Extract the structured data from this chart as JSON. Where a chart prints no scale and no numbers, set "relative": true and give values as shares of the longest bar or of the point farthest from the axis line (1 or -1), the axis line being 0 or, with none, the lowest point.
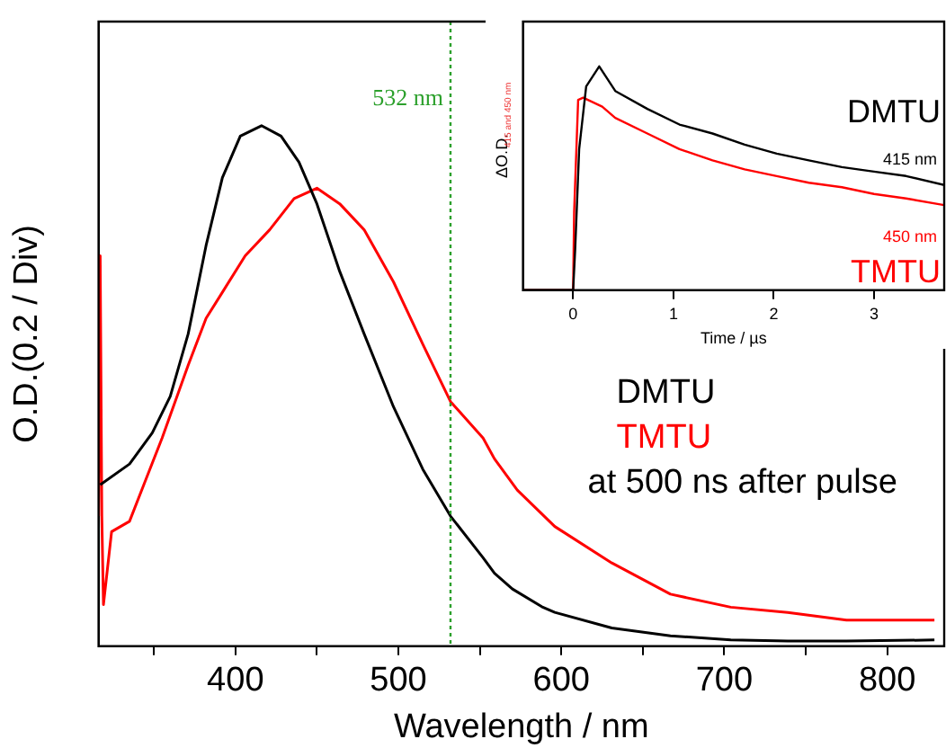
{
  "chart_data": [
    {
      "type": "line",
      "xlabel": "Wavelength / nm",
      "ylabel": "O.D.(0.2 / Div)",
      "relative": true,
      "xlim": [
        316,
        835
      ],
      "xticks": [
        {
          "value": 350,
          "label": null
        },
        400,
        {
          "value": 450,
          "label": null
        },
        500,
        {
          "value": 550,
          "label": null
        },
        600,
        {
          "value": 650,
          "label": null
        },
        700,
        {
          "value": 750,
          "label": null
        },
        800
      ],
      "series": [
        {
          "name": "DMTU",
          "color": "#000000",
          "x": [
            317,
            335,
            349,
            360,
            371,
            382,
            392,
            403,
            416,
            428,
            439,
            450,
            464,
            479,
            497,
            515,
            532,
            552,
            559,
            570,
            588,
            596,
            631,
            667,
            704,
            739,
            775,
            829
          ],
          "values": [
            0.31,
            0.35,
            0.41,
            0.48,
            0.6,
            0.77,
            0.9,
            0.98,
            1.0,
            0.98,
            0.93,
            0.85,
            0.72,
            0.6,
            0.46,
            0.34,
            0.25,
            0.17,
            0.14,
            0.11,
            0.076,
            0.065,
            0.035,
            0.02,
            0.012,
            0.01,
            0.01,
            0.012
          ]
        },
        {
          "name": "TMTU",
          "color": "#ff0000",
          "x": [
            316,
            317,
            318,
            319,
            324,
            335,
            345,
            355,
            371,
            382,
            392,
            406,
            421,
            436,
            450,
            464,
            479,
            497,
            515,
            532,
            552,
            559,
            573,
            596,
            631,
            667,
            704,
            739,
            775,
            829
          ],
          "values": [
            0.25,
            0.75,
            0.25,
            0.08,
            0.22,
            0.24,
            0.32,
            0.4,
            0.54,
            0.63,
            0.68,
            0.75,
            0.8,
            0.86,
            0.88,
            0.85,
            0.8,
            0.7,
            0.58,
            0.47,
            0.4,
            0.36,
            0.3,
            0.23,
            0.16,
            0.1,
            0.075,
            0.065,
            0.05,
            0.05
          ]
        }
      ],
      "ref_lines": [
        {
          "axis": "x",
          "value": 532,
          "label": "532 nm",
          "color": "#2ca02c",
          "line_style": "dotted"
        }
      ],
      "annotations": [
        "at 500 ns after pulse"
      ],
      "legend": "right",
      "grid": false
    },
    {
      "type": "line",
      "xlabel": "Time / µs",
      "ylabel": "ΔO.D. $_{415 and 450 nm}$",
      "relative": true,
      "xlim": [
        -0.5,
        3.7
      ],
      "xticks": [
        0,
        1,
        2,
        3
      ],
      "series": [
        {
          "name": "415 nm",
          "color": "#000000",
          "x": [
            -0.5,
            0,
            0.02,
            0.06,
            0.13,
            0.26,
            0.42,
            0.74,
            1.06,
            1.39,
            1.71,
            2.03,
            2.35,
            2.68,
            3.0,
            3.32,
            3.7
          ],
          "values": [
            0,
            0,
            0.18,
            0.63,
            0.91,
            1.0,
            0.89,
            0.81,
            0.74,
            0.7,
            0.65,
            0.61,
            0.58,
            0.55,
            0.53,
            0.51,
            0.47
          ]
        },
        {
          "name": "450 nm",
          "color": "#ff0000",
          "x": [
            -0.5,
            0,
            0.01,
            0.05,
            0.1,
            0.29,
            0.42,
            0.74,
            1.06,
            1.39,
            1.71,
            2.03,
            2.35,
            2.68,
            3.0,
            3.32,
            3.7
          ],
          "values": [
            0,
            0,
            0.35,
            0.85,
            0.86,
            0.82,
            0.77,
            0.7,
            0.63,
            0.58,
            0.54,
            0.51,
            0.48,
            0.46,
            0.43,
            0.41,
            0.38
          ]
        }
      ],
      "annotations": [
        "DMTU",
        "TMTU"
      ],
      "legend": false,
      "grid": false
    }
  ]
}
